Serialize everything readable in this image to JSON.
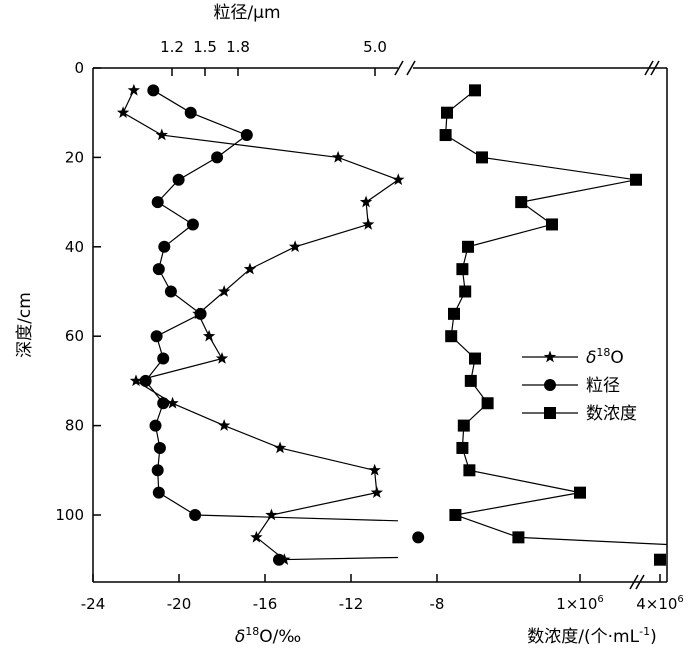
{
  "chart_data": {
    "type": "line",
    "y_axis": {
      "label": "深度/cm",
      "range": [
        0,
        115
      ],
      "ticks": [
        0,
        20,
        40,
        60,
        80,
        100
      ],
      "tick_labels": [
        "0",
        "20",
        "40",
        "60",
        "80",
        "100"
      ]
    },
    "top_axis": {
      "label": "粒径/μm",
      "ticks": [
        1.2,
        1.5,
        1.8,
        5.0
      ],
      "tick_labels": [
        "1.2",
        "1.5",
        "1.8",
        "5.0"
      ],
      "broken": true
    },
    "bottom_axis_left": {
      "label": "δ18O/‰",
      "label_base": "δ",
      "label_sup": "18",
      "label_rest": "O/‰",
      "range": [
        -24,
        -8
      ],
      "ticks": [
        -24,
        -20,
        -16,
        -12,
        -8
      ],
      "tick_labels": [
        "-24",
        "-20",
        "-16",
        "-12",
        "-8"
      ]
    },
    "bottom_axis_right": {
      "label": "数浓度/(个·mL-1)",
      "label_main": "数浓度/(个·mL",
      "label_sup": "-1",
      "label_close": ")",
      "ticks": [
        "1×10^6",
        "4×10^6"
      ],
      "tick_labels": [
        {
          "base": "1×10",
          "sup": "6"
        },
        {
          "base": "4×10",
          "sup": "6"
        }
      ],
      "broken": true
    },
    "legend": {
      "position": "right-middle",
      "entries": [
        {
          "label_base": "δ",
          "label_sup": "18",
          "label_rest": "O",
          "marker": "star"
        },
        {
          "label": "粒径",
          "marker": "circle"
        },
        {
          "label": "数浓度",
          "marker": "square"
        }
      ]
    },
    "series": [
      {
        "name": "δ18O",
        "unit": "‰",
        "marker": "star",
        "points": [
          {
            "depth": 5,
            "value": -22.1
          },
          {
            "depth": 10,
            "value": -22.6
          },
          {
            "depth": 15,
            "value": -20.8
          },
          {
            "depth": 20,
            "value": -12.6
          },
          {
            "depth": 25,
            "value": -9.8
          },
          {
            "depth": 30,
            "value": -11.3
          },
          {
            "depth": 35,
            "value": -11.2
          },
          {
            "depth": 40,
            "value": -14.6
          },
          {
            "depth": 45,
            "value": -16.7
          },
          {
            "depth": 50,
            "value": -17.9
          },
          {
            "depth": 55,
            "value": -19.1
          },
          {
            "depth": 60,
            "value": -18.6
          },
          {
            "depth": 65,
            "value": -18.0
          },
          {
            "depth": 70,
            "value": -22.0
          },
          {
            "depth": 75,
            "value": -20.3
          },
          {
            "depth": 80,
            "value": -17.9
          },
          {
            "depth": 85,
            "value": -15.3
          },
          {
            "depth": 90,
            "value": -10.9
          },
          {
            "depth": 95,
            "value": -10.8
          },
          {
            "depth": 100,
            "value": -15.7
          },
          {
            "depth": 105,
            "value": -16.4
          },
          {
            "depth": 110,
            "value": -15.1
          }
        ]
      },
      {
        "name": "粒径",
        "unit": "μm",
        "marker": "circle",
        "points": [
          {
            "depth": 5,
            "value": 1.03
          },
          {
            "depth": 10,
            "value": 1.37
          },
          {
            "depth": 15,
            "value": 1.88
          },
          {
            "depth": 20,
            "value": 1.61
          },
          {
            "depth": 25,
            "value": 1.26
          },
          {
            "depth": 30,
            "value": 1.07
          },
          {
            "depth": 35,
            "value": 1.39
          },
          {
            "depth": 40,
            "value": 1.13
          },
          {
            "depth": 45,
            "value": 1.08
          },
          {
            "depth": 50,
            "value": 1.19
          },
          {
            "depth": 55,
            "value": 1.46
          },
          {
            "depth": 60,
            "value": 1.06
          },
          {
            "depth": 65,
            "value": 1.12
          },
          {
            "depth": 70,
            "value": 0.96
          },
          {
            "depth": 75,
            "value": 1.12
          },
          {
            "depth": 80,
            "value": 1.05
          },
          {
            "depth": 85,
            "value": 1.09
          },
          {
            "depth": 90,
            "value": 1.07
          },
          {
            "depth": 95,
            "value": 1.08
          },
          {
            "depth": 100,
            "value": 1.41
          },
          {
            "depth": 105,
            "value": 5.9
          },
          {
            "depth": 110,
            "value": 3.0
          }
        ]
      },
      {
        "name": "数浓度",
        "unit": "个·mL-1",
        "marker": "square",
        "points": [
          {
            "depth": 5,
            "value": 0.25
          },
          {
            "depth": 10,
            "value": 0.05
          },
          {
            "depth": 15,
            "value": 0.04
          },
          {
            "depth": 20,
            "value": 0.3
          },
          {
            "depth": 25,
            "value": 1.4
          },
          {
            "depth": 30,
            "value": 0.58
          },
          {
            "depth": 35,
            "value": 0.8
          },
          {
            "depth": 40,
            "value": 0.2
          },
          {
            "depth": 45,
            "value": 0.16
          },
          {
            "depth": 50,
            "value": 0.18
          },
          {
            "depth": 55,
            "value": 0.1
          },
          {
            "depth": 60,
            "value": 0.08
          },
          {
            "depth": 65,
            "value": 0.25
          },
          {
            "depth": 70,
            "value": 0.22
          },
          {
            "depth": 75,
            "value": 0.34
          },
          {
            "depth": 80,
            "value": 0.17
          },
          {
            "depth": 85,
            "value": 0.16
          },
          {
            "depth": 90,
            "value": 0.21
          },
          {
            "depth": 95,
            "value": 1.0
          },
          {
            "depth": 100,
            "value": 0.11
          },
          {
            "depth": 105,
            "value": 0.56
          },
          {
            "depth": 110,
            "value": 4.0
          }
        ]
      }
    ]
  }
}
